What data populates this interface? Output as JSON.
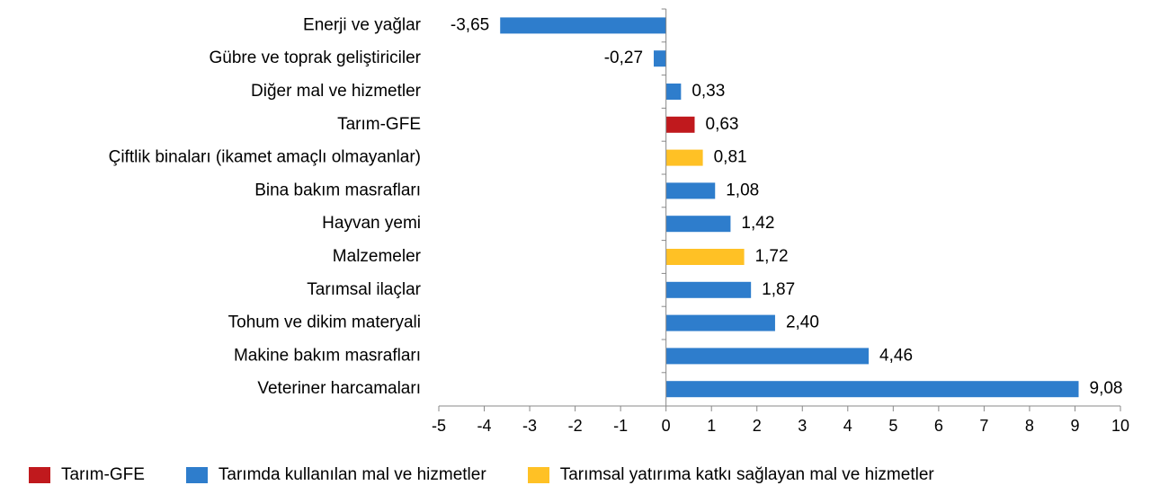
{
  "chart_data": {
    "type": "bar",
    "orientation": "horizontal",
    "title": "",
    "xlabel": "",
    "ylabel": "",
    "xlim": [
      -5,
      10
    ],
    "x_ticks": [
      "-5",
      "-4",
      "-3",
      "-2",
      "-1",
      "0",
      "1",
      "2",
      "3",
      "4",
      "5",
      "6",
      "7",
      "8",
      "9",
      "10"
    ],
    "grid": false,
    "legend_position": "bottom",
    "categories": [
      "Enerji ve yağlar",
      "Gübre ve toprak geliştiriciler",
      "Diğer mal ve hizmetler",
      "Tarım-GFE",
      "Çiftlik binaları (ikamet amaçlı olmayanlar)",
      "Bina bakım masrafları",
      "Hayvan yemi",
      "Malzemeler",
      "Tarımsal ilaçlar",
      "Tohum ve dikim materyali",
      "Makine bakım masrafları",
      "Veteriner harcamaları"
    ],
    "values": [
      -3.65,
      -0.27,
      0.33,
      0.63,
      0.81,
      1.08,
      1.42,
      1.72,
      1.87,
      2.4,
      4.46,
      9.08
    ],
    "value_labels": [
      "-3,65",
      "-0,27",
      "0,33",
      "0,63",
      "0,81",
      "1,08",
      "1,42",
      "1,72",
      "1,87",
      "2,40",
      "4,46",
      "9,08"
    ],
    "bar_series": [
      1,
      1,
      1,
      0,
      2,
      1,
      1,
      2,
      1,
      1,
      1,
      1
    ],
    "series": [
      {
        "name": "Tarım-GFE",
        "color": "#C0191D"
      },
      {
        "name": "Tarımda kullanılan mal ve hizmetler",
        "color": "#2E7DCC"
      },
      {
        "name": "Tarımsal yatırıma katkı sağlayan mal ve hizmetler",
        "color": "#FFC125"
      }
    ]
  }
}
